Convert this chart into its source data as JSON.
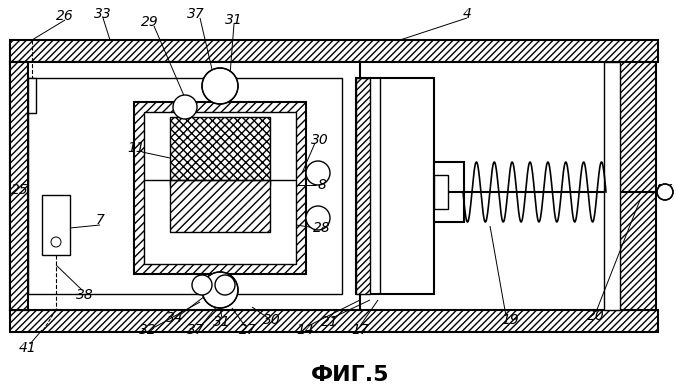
{
  "bg_color": "#ffffff",
  "line_color": "#000000",
  "title": "ФИГ.5",
  "title_fontsize": 16,
  "label_fontsize": 10,
  "lw": 1.0,
  "lw2": 1.5
}
